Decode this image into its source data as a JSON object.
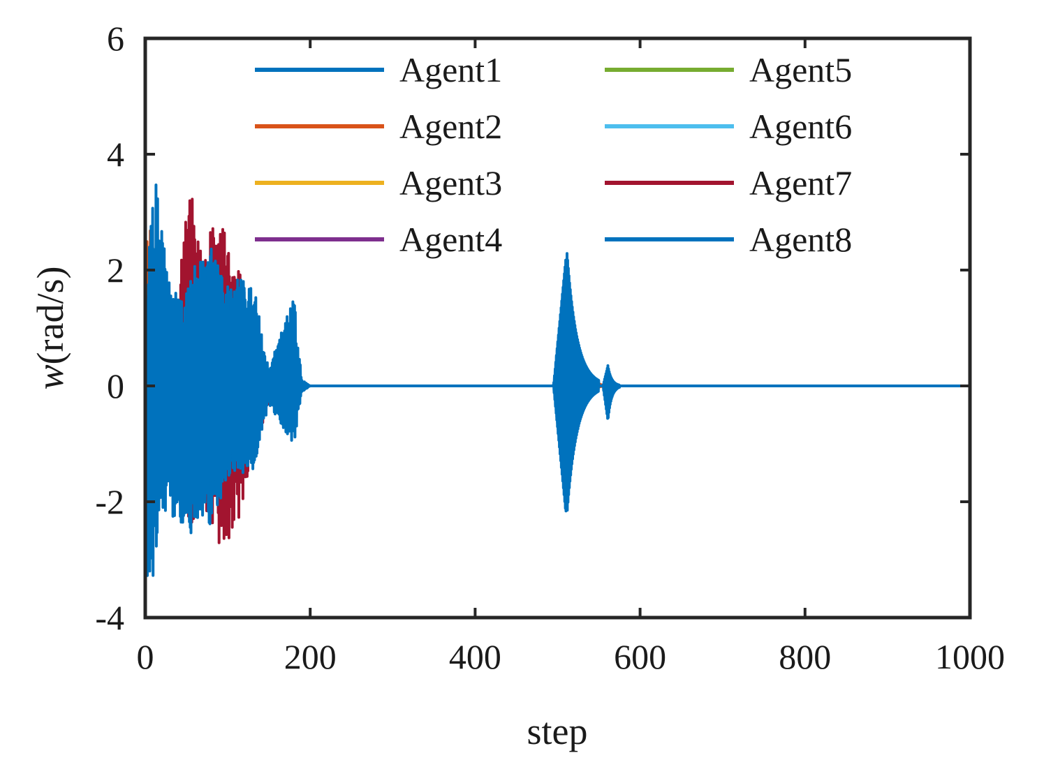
{
  "chart_data": {
    "type": "line",
    "title": "",
    "xlabel": "step",
    "ylabel_var": "w",
    "ylabel_unit": "(rad/s)",
    "xlim": [
      0,
      1000
    ],
    "ylim": [
      -4,
      6
    ],
    "x_ticks": [
      0,
      200,
      400,
      600,
      800,
      1000
    ],
    "y_ticks": [
      -4,
      -2,
      0,
      2,
      4,
      6
    ],
    "x_tick_labels": [
      "0",
      "200",
      "400",
      "600",
      "800",
      "1000"
    ],
    "y_tick_labels": [
      "-4",
      "-2",
      "0",
      "2",
      "4",
      "6"
    ],
    "grid": false,
    "legend_position": "top",
    "legend_columns": 2,
    "series": [
      {
        "name": "Agent1",
        "color": "#0072BD",
        "envelope": [
          [
            0,
            1.3
          ],
          [
            10,
            4.0
          ],
          [
            20,
            2.7
          ],
          [
            35,
            1.5
          ],
          [
            50,
            1.6
          ],
          [
            60,
            2.3
          ],
          [
            80,
            2.4
          ],
          [
            100,
            1.6
          ],
          [
            120,
            1.8
          ],
          [
            135,
            0.7
          ],
          [
            150,
            0.2
          ],
          [
            180,
            0.15
          ],
          [
            190,
            0.0
          ]
        ],
        "envelope_lower": [
          [
            0,
            -3.5
          ],
          [
            10,
            -3.3
          ],
          [
            20,
            -2.2
          ],
          [
            35,
            -1.5
          ],
          [
            50,
            -2.7
          ],
          [
            60,
            -2.5
          ],
          [
            80,
            -2.6
          ],
          [
            100,
            -1.6
          ],
          [
            120,
            -1.5
          ],
          [
            135,
            -0.5
          ],
          [
            150,
            -0.2
          ],
          [
            180,
            -0.15
          ],
          [
            190,
            0.0
          ]
        ],
        "burst": [
          [
            495,
            -2.2,
            2.3,
            550
          ]
        ]
      },
      {
        "name": "Agent2",
        "color": "#D95319",
        "envelope": [
          [
            0,
            2.4
          ],
          [
            8,
            3.2
          ],
          [
            20,
            2.0
          ],
          [
            30,
            1.5
          ],
          [
            40,
            0.5
          ],
          [
            50,
            0.1
          ]
        ],
        "envelope_lower": [
          [
            0,
            -2.5
          ],
          [
            8,
            -2.0
          ],
          [
            20,
            -1.8
          ],
          [
            30,
            -1.3
          ],
          [
            40,
            -0.4
          ],
          [
            50,
            -0.1
          ]
        ],
        "burst": [
          [
            540,
            -0.05,
            0.1,
            560
          ]
        ]
      },
      {
        "name": "Agent3",
        "color": "#EDB120",
        "envelope": [
          [
            0,
            2.3
          ],
          [
            8,
            2.4
          ],
          [
            20,
            1.2
          ],
          [
            35,
            0.4
          ],
          [
            45,
            0.0
          ]
        ],
        "envelope_lower": [
          [
            0,
            -2.0
          ],
          [
            8,
            -1.5
          ],
          [
            20,
            -1.0
          ],
          [
            35,
            -0.3
          ],
          [
            45,
            0.0
          ]
        ],
        "burst": []
      },
      {
        "name": "Agent4",
        "color": "#7E2F8E",
        "envelope": [
          [
            0,
            0.6
          ],
          [
            20,
            0.4
          ],
          [
            40,
            0.0
          ]
        ],
        "envelope_lower": [
          [
            0,
            -0.6
          ],
          [
            20,
            -0.4
          ],
          [
            40,
            0.0
          ]
        ],
        "burst": []
      },
      {
        "name": "Agent5",
        "color": "#77AC30",
        "envelope": [
          [
            0,
            0.4
          ],
          [
            20,
            0.2
          ],
          [
            40,
            0.0
          ]
        ],
        "envelope_lower": [
          [
            0,
            -0.3
          ],
          [
            20,
            -0.2
          ],
          [
            40,
            0.0
          ]
        ],
        "burst": []
      },
      {
        "name": "Agent6",
        "color": "#4DBEEE",
        "envelope": [
          [
            0,
            1.0
          ],
          [
            40,
            1.0
          ],
          [
            100,
            1.2
          ],
          [
            140,
            0.3
          ],
          [
            160,
            0.25
          ],
          [
            180,
            0.0
          ]
        ],
        "envelope_lower": [
          [
            0,
            -1.0
          ],
          [
            40,
            -1.0
          ],
          [
            100,
            -1.0
          ],
          [
            140,
            -0.3
          ],
          [
            160,
            -0.25
          ],
          [
            180,
            0.0
          ]
        ],
        "burst": []
      },
      {
        "name": "Agent7",
        "color": "#A2142F",
        "envelope": [
          [
            0,
            1.5
          ],
          [
            15,
            2.0
          ],
          [
            35,
            1.0
          ],
          [
            55,
            3.7
          ],
          [
            70,
            2.0
          ],
          [
            80,
            2.8
          ],
          [
            95,
            2.8
          ],
          [
            115,
            2.0
          ],
          [
            130,
            1.0
          ],
          [
            150,
            0.3
          ],
          [
            170,
            0.25
          ],
          [
            185,
            0.0
          ]
        ],
        "envelope_lower": [
          [
            0,
            -2.8
          ],
          [
            15,
            -2.2
          ],
          [
            35,
            -1.0
          ],
          [
            55,
            -2.5
          ],
          [
            70,
            -2.0
          ],
          [
            90,
            -2.8
          ],
          [
            110,
            -2.6
          ],
          [
            130,
            -1.2
          ],
          [
            150,
            -0.3
          ],
          [
            170,
            -0.25
          ],
          [
            185,
            0.0
          ]
        ],
        "burst": []
      },
      {
        "name": "Agent8",
        "color": "#0072BD",
        "envelope": [
          [
            0,
            1.2
          ],
          [
            15,
            2.0
          ],
          [
            50,
            1.5
          ],
          [
            70,
            2.3
          ],
          [
            100,
            1.8
          ],
          [
            130,
            1.9
          ],
          [
            150,
            0.3
          ],
          [
            180,
            1.6
          ],
          [
            190,
            0.1
          ],
          [
            200,
            0.0
          ]
        ],
        "envelope_lower": [
          [
            0,
            -2.8
          ],
          [
            15,
            -2.0
          ],
          [
            50,
            -2.6
          ],
          [
            70,
            -2.2
          ],
          [
            100,
            -1.4
          ],
          [
            130,
            -1.5
          ],
          [
            150,
            -0.3
          ],
          [
            180,
            -1.1
          ],
          [
            190,
            -0.1
          ],
          [
            200,
            0.0
          ]
        ],
        "burst": [
          [
            495,
            -2.2,
            2.2,
            545
          ],
          [
            555,
            -0.6,
            0.35,
            575
          ]
        ]
      }
    ]
  }
}
